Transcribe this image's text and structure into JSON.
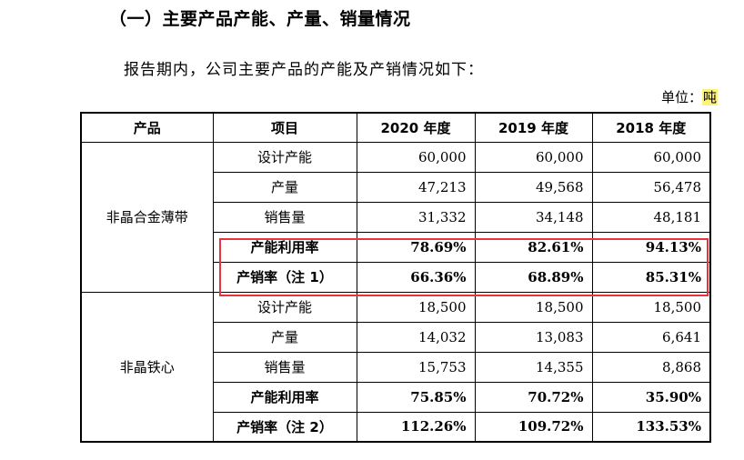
{
  "heading": "（一）主要产品产能、产量、销量情况",
  "intro": "报告期内，公司主要产品的产能及产销情况如下：",
  "unit_label": "单位：",
  "unit_value": "吨",
  "table": {
    "headers": [
      "产品",
      "项目",
      "2020 年度",
      "2019 年度",
      "2018 年度"
    ],
    "groups": [
      {
        "product": "非晶合金薄带",
        "rows": [
          {
            "item": "设计产能",
            "v2020": "60,000",
            "v2019": "60,000",
            "v2018": "60,000"
          },
          {
            "item": "产量",
            "v2020": "47,213",
            "v2019": "49,568",
            "v2018": "56,478"
          },
          {
            "item": "销售量",
            "v2020": "31,332",
            "v2019": "34,148",
            "v2018": "48,181"
          },
          {
            "item": "产能利用率",
            "v2020": "78.69%",
            "v2019": "82.61%",
            "v2018": "94.13%"
          },
          {
            "item": "产销率（注 1）",
            "v2020": "66.36%",
            "v2019": "68.89%",
            "v2018": "85.31%"
          }
        ]
      },
      {
        "product": "非晶铁心",
        "rows": [
          {
            "item": "设计产能",
            "v2020": "18,500",
            "v2019": "18,500",
            "v2018": "18,500"
          },
          {
            "item": "产量",
            "v2020": "14,032",
            "v2019": "13,083",
            "v2018": "6,641"
          },
          {
            "item": "销售量",
            "v2020": "15,753",
            "v2019": "14,355",
            "v2018": "8,868"
          },
          {
            "item": "产能利用率",
            "v2020": "75.85%",
            "v2019": "70.72%",
            "v2018": "35.90%"
          },
          {
            "item": "产销率（注 2）",
            "v2020": "112.26%",
            "v2019": "109.72%",
            "v2018": "133.53%"
          }
        ]
      }
    ]
  },
  "highlight_color": "#e8333d"
}
